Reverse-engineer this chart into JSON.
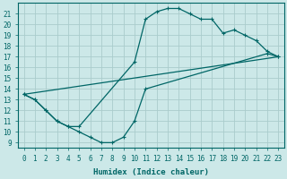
{
  "xlabel": "Humidex (Indice chaleur)",
  "bg_color": "#cce8e8",
  "grid_color": "#aacccc",
  "line_color": "#006666",
  "xlim": [
    -0.5,
    23.5
  ],
  "ylim": [
    8.5,
    22
  ],
  "xticks": [
    0,
    1,
    2,
    3,
    4,
    5,
    6,
    7,
    8,
    9,
    10,
    11,
    12,
    13,
    14,
    15,
    16,
    17,
    18,
    19,
    20,
    21,
    22,
    23
  ],
  "yticks": [
    9,
    10,
    11,
    12,
    13,
    14,
    15,
    16,
    17,
    18,
    19,
    20,
    21
  ],
  "line1_x": [
    0,
    1,
    2,
    3,
    4,
    5,
    10,
    11,
    12,
    13,
    14,
    15,
    16,
    17,
    18,
    19,
    20,
    21,
    22,
    23
  ],
  "line1_y": [
    13.5,
    13.0,
    12.0,
    11.0,
    10.5,
    10.5,
    16.5,
    20.5,
    21.2,
    21.5,
    21.5,
    21.0,
    20.5,
    20.5,
    19.2,
    19.5,
    19.0,
    18.5,
    17.5,
    17.0
  ],
  "line2_x": [
    0,
    23
  ],
  "line2_y": [
    13.5,
    17.0
  ],
  "line3_x": [
    0,
    1,
    2,
    3,
    4,
    5,
    6,
    7,
    8,
    9,
    10,
    11,
    22,
    23
  ],
  "line3_y": [
    13.5,
    13.0,
    12.0,
    11.0,
    10.5,
    10.0,
    9.5,
    9.0,
    9.0,
    9.5,
    11.0,
    14.0,
    17.3,
    17.0
  ],
  "marker": "+",
  "xlabel_fontsize": 6.5,
  "tick_fontsize": 5.5
}
